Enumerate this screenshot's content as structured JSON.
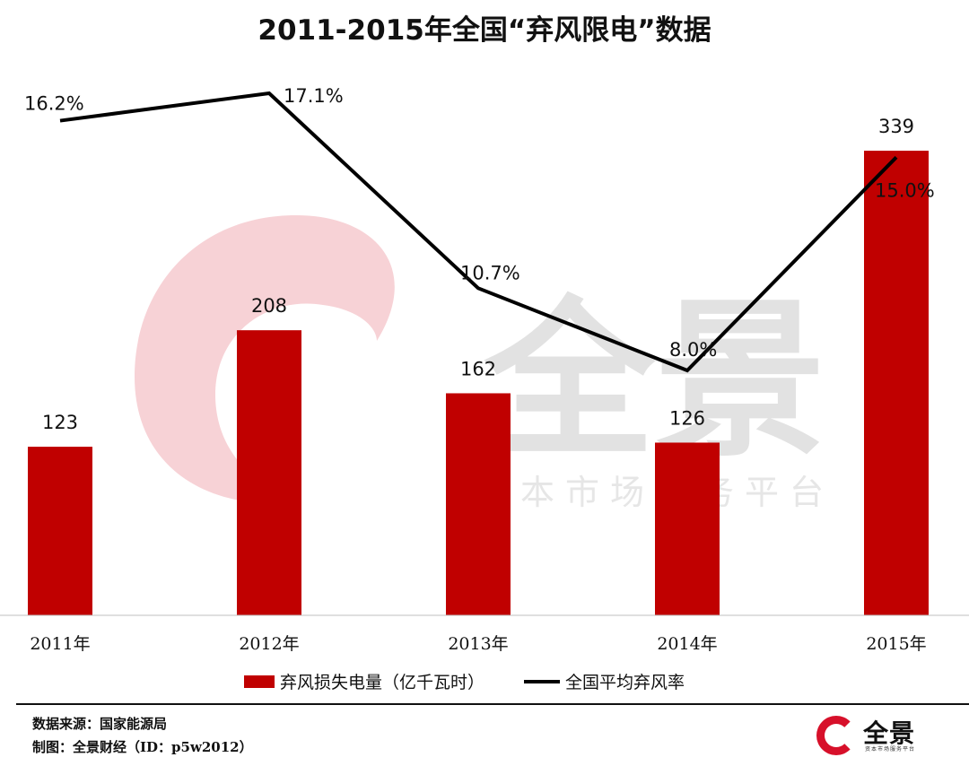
{
  "chart_data": {
    "title": "2011-2015年全国“弃风限电”数据",
    "type": "bar+line",
    "categories": [
      "2011年",
      "2012年",
      "2013年",
      "2014年",
      "2015年"
    ],
    "series": [
      {
        "name": "弃风损失电量（亿千瓦时）",
        "type": "bar",
        "values": [
          123,
          208,
          162,
          126,
          339
        ],
        "labels": [
          "123",
          "208",
          "162",
          "126",
          "339"
        ],
        "color": "#c00000"
      },
      {
        "name": "全国平均弃风率",
        "type": "line",
        "values": [
          16.2,
          17.1,
          10.7,
          8.0,
          15.0
        ],
        "labels": [
          "16.2%",
          "17.1%",
          "10.7%",
          "8.0%",
          "15.0%"
        ],
        "color": "#000000"
      }
    ],
    "bar_ylim": [
      0,
      350
    ],
    "line_ylim": [
      0,
      19
    ],
    "grid": false,
    "legend_position": "bottom"
  },
  "watermark": {
    "brand": "全景",
    "tagline": "资本市场服务平台"
  },
  "footer": {
    "source": "数据来源：国家能源局",
    "credit": "制图：全景财经（ID：p5w2012）",
    "logo_name": "全景",
    "logo_sub": "资本市场服务平台"
  }
}
